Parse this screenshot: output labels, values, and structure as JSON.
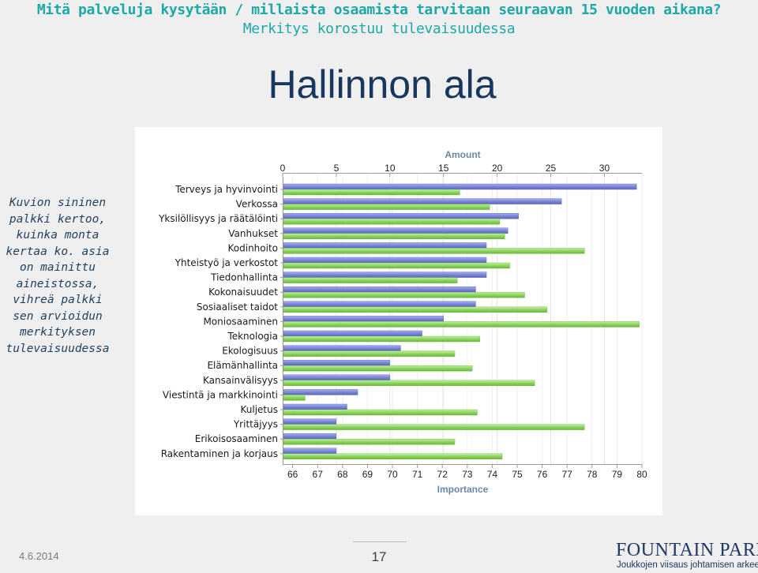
{
  "header": {
    "question": "Mitä palveluja kysytään / millaista osaamista tarvitaan seuraavan 15 vuoden aikana?",
    "subtitle": "Merkitys korostuu tulevaisuudessa"
  },
  "title": "Hallinnon ala",
  "side_note": "Kuvion sininen palkki kertoo, kuinka monta kertaa ko. asia on mainittu aineistossa, vihreä palkki sen arvioidun merkityksen tulevaisuudessa",
  "footer": {
    "date": "4.6.2014",
    "page_number": "17",
    "logo_name": "FOUNTAIN PARK",
    "logo_tagline": "Joukkojen viisaus johtamisen arkeen"
  },
  "colors": {
    "amount_bar": "#7b86d8",
    "importance_bar": "#8fd462",
    "axis_title": "#6c87a5",
    "header_text": "#1ea8a8",
    "title_text": "#17375e"
  },
  "chart_data": {
    "type": "bar",
    "orientation": "horizontal",
    "categories": [
      "Terveys ja hyvinvointi",
      "Verkossa",
      "Yksilöllisyys ja räätälöinti",
      "Vanhukset",
      "Kodinhoito",
      "Yhteistyö ja verkostot",
      "Tiedonhallinta",
      "Kokonaisuudet",
      "Sosiaaliset taidot",
      "Moniosaaminen",
      "Teknologia",
      "Ekologisuus",
      "Elämänhallinta",
      "Kansainvälisyys",
      "Viestintä ja markkinointi",
      "Kuljetus",
      "Yrittäjyys",
      "Erikoisosaaminen",
      "Rakentaminen ja korjaus"
    ],
    "series": [
      {
        "name": "Amount",
        "axis": "top",
        "values": [
          33,
          26,
          22,
          21,
          19,
          19,
          19,
          18,
          18,
          15,
          13,
          11,
          10,
          10,
          7,
          6,
          5,
          5,
          5
        ]
      },
      {
        "name": "Importance",
        "axis": "bottom",
        "values": [
          72.7,
          73.9,
          74.3,
          74.5,
          77.7,
          74.7,
          72.6,
          75.3,
          76.2,
          79.9,
          73.5,
          72.5,
          73.2,
          75.7,
          66.5,
          73.4,
          77.7,
          72.5,
          74.4
        ]
      }
    ],
    "top_axis": {
      "title": "Amount",
      "ticks": [
        0,
        5,
        10,
        15,
        20,
        25,
        30
      ],
      "range": [
        0,
        33.5
      ]
    },
    "bottom_axis": {
      "title": "Importance",
      "ticks": [
        66,
        67,
        68,
        69,
        70,
        71,
        72,
        73,
        74,
        75,
        76,
        77,
        78,
        79,
        80
      ],
      "range": [
        65.6,
        80.0
      ]
    },
    "grid": "vertical"
  }
}
